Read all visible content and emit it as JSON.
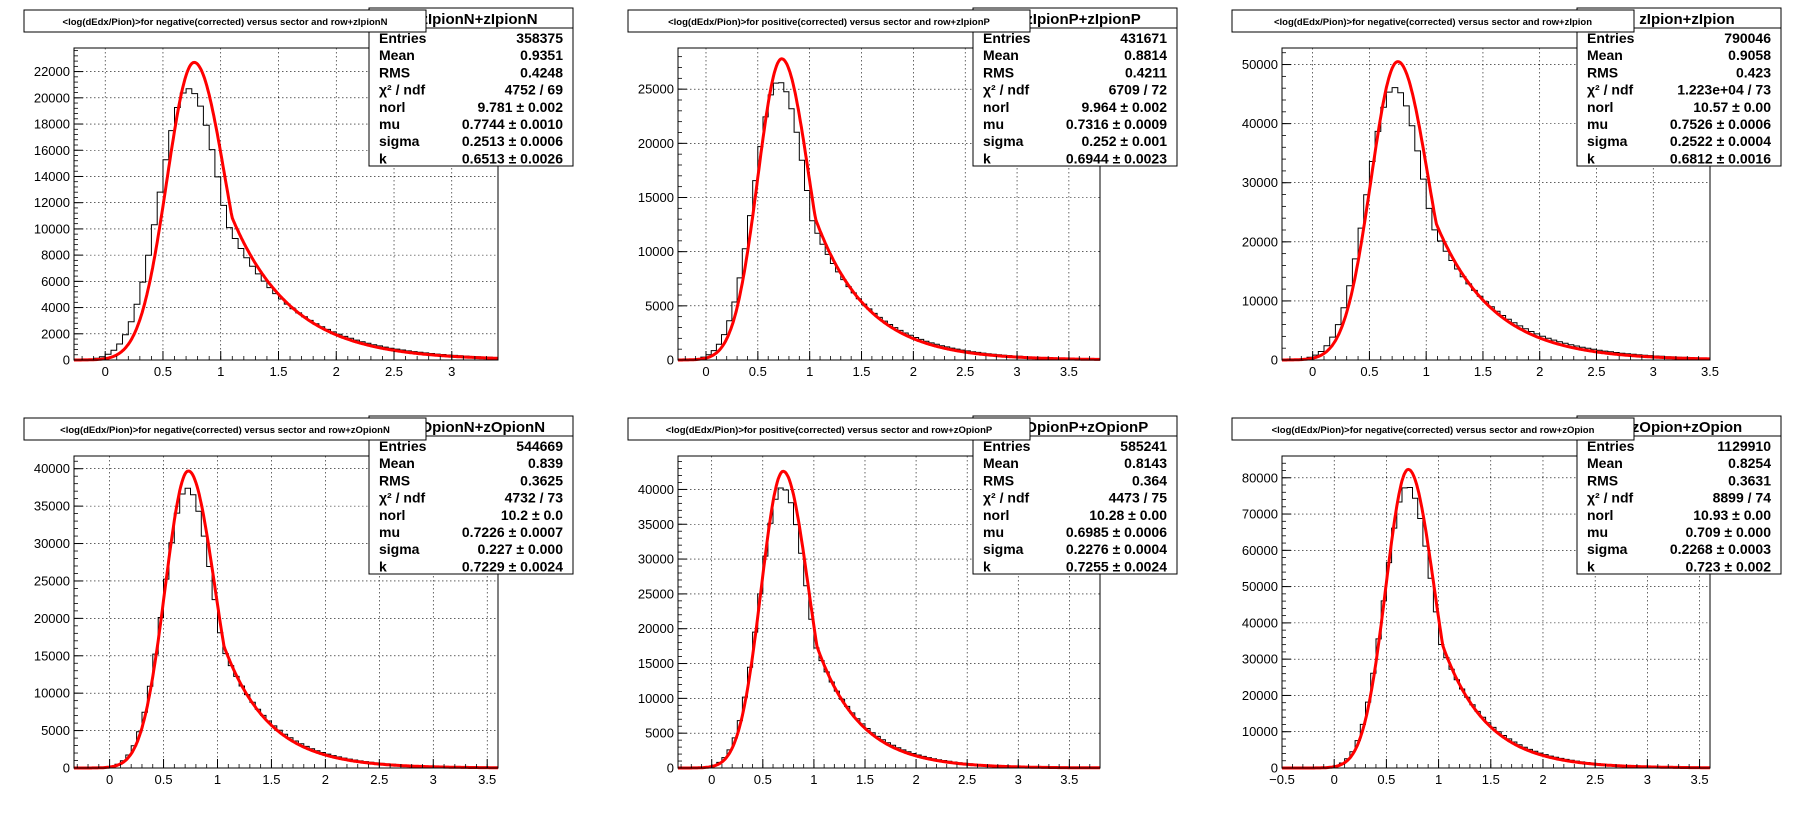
{
  "window": {
    "width": 1800,
    "height": 814
  },
  "colors": {
    "histogram": "#000000",
    "fit": "#ff0000",
    "grid": "#000000",
    "frame": "#000000",
    "background": "#ffffff"
  },
  "chart_data": [
    {
      "type": "histogram-with-fit",
      "title": "<log(dEdx/Pion)>for negative(corrected) versus sector and row+zIpionN",
      "stats_header": "zIpionN+zIpionN",
      "stats": [
        {
          "label": "Entries",
          "value": "358375"
        },
        {
          "label": "Mean",
          "value": "0.9351"
        },
        {
          "label": "RMS",
          "value": "0.4248"
        },
        {
          "label": "χ² / ndf",
          "value": "4752 / 69"
        },
        {
          "label": "norl",
          "value": "9.781 ± 0.002"
        },
        {
          "label": "mu",
          "value": "0.7744 ± 0.0010"
        },
        {
          "label": "sigma",
          "value": "0.2513 ± 0.0006"
        },
        {
          "label": "k",
          "value": "0.6513 ± 0.0026"
        }
      ],
      "xlim": [
        -0.27,
        3.4
      ],
      "ylim": [
        0,
        23800
      ],
      "xticks": [
        0,
        0.5,
        1,
        1.5,
        2,
        2.5,
        3
      ],
      "xtick_labels": [
        "0",
        "0.5",
        "1",
        "1.5",
        "2",
        "2.5",
        "3"
      ],
      "yticks": [
        0,
        2000,
        4000,
        6000,
        8000,
        10000,
        12000,
        14000,
        16000,
        18000,
        20000,
        22000
      ],
      "ytick_labels": [
        "0",
        "2000",
        "4000",
        "6000",
        "8000",
        "10000",
        "12000",
        "14000",
        "16000",
        "18000",
        "20000",
        "22000"
      ],
      "fit": {
        "peak": 0.77,
        "amplitude": 22700,
        "sigma_left": 0.235,
        "tail_decay": 0.52
      },
      "histogram": {
        "peak": 0.72,
        "amplitude": 20700,
        "sigma_left": 0.25,
        "tail_decay": 0.58,
        "bin_width": 0.05
      }
    },
    {
      "type": "histogram-with-fit",
      "title": "<log(dEdx/Pion)>for positive(corrected) versus sector and row+zIpionP",
      "stats_header": "zIpionP+zIpionP",
      "stats": [
        {
          "label": "Entries",
          "value": "431671"
        },
        {
          "label": "Mean",
          "value": "0.8814"
        },
        {
          "label": "RMS",
          "value": "0.4211"
        },
        {
          "label": "χ² / ndf",
          "value": "6709 / 72"
        },
        {
          "label": "norl",
          "value": "9.964 ± 0.002"
        },
        {
          "label": "mu",
          "value": "0.7316 ± 0.0009"
        },
        {
          "label": "sigma",
          "value": "0.252 ± 0.001"
        },
        {
          "label": "k",
          "value": "0.6944 ± 0.0023"
        }
      ],
      "xlim": [
        -0.27,
        3.8
      ],
      "ylim": [
        0,
        28800
      ],
      "xticks": [
        0,
        0.5,
        1,
        1.5,
        2,
        2.5,
        3,
        3.5
      ],
      "xtick_labels": [
        "0",
        "0.5",
        "1",
        "1.5",
        "2",
        "2.5",
        "3",
        "3.5"
      ],
      "yticks": [
        0,
        5000,
        10000,
        15000,
        20000,
        25000
      ],
      "ytick_labels": [
        "0",
        "5000",
        "10000",
        "15000",
        "20000",
        "25000"
      ],
      "fit": {
        "peak": 0.73,
        "amplitude": 27800,
        "sigma_left": 0.23,
        "tail_decay": 0.5
      },
      "histogram": {
        "peak": 0.7,
        "amplitude": 25700,
        "sigma_left": 0.24,
        "tail_decay": 0.55,
        "bin_width": 0.05
      }
    },
    {
      "type": "histogram-with-fit",
      "title": "<log(dEdx/Pion)>for negative(corrected) versus sector and row+zIpion",
      "stats_header": "zIpion+zIpion",
      "stats": [
        {
          "label": "Entries",
          "value": "790046"
        },
        {
          "label": "Mean",
          "value": "0.9058"
        },
        {
          "label": "RMS",
          "value": "0.423"
        },
        {
          "label": "χ² / ndf",
          "value": "1.223e+04 / 73"
        },
        {
          "label": "norl",
          "value": "10.57 ± 0.00"
        },
        {
          "label": "mu",
          "value": "0.7526 ± 0.0006"
        },
        {
          "label": "sigma",
          "value": "0.2522 ± 0.0004"
        },
        {
          "label": "k",
          "value": "0.6812 ± 0.0016"
        }
      ],
      "xlim": [
        -0.27,
        3.5
      ],
      "ylim": [
        0,
        52800
      ],
      "xticks": [
        0,
        0.5,
        1,
        1.5,
        2,
        2.5,
        3,
        3.5
      ],
      "xtick_labels": [
        "0",
        "0.5",
        "1",
        "1.5",
        "2",
        "2.5",
        "3",
        "3.5"
      ],
      "yticks": [
        0,
        10000,
        20000,
        30000,
        40000,
        50000
      ],
      "ytick_labels": [
        "0",
        "10000",
        "20000",
        "30000",
        "40000",
        "50000"
      ],
      "fit": {
        "peak": 0.75,
        "amplitude": 50500,
        "sigma_left": 0.235,
        "tail_decay": 0.5
      },
      "histogram": {
        "peak": 0.72,
        "amplitude": 46100,
        "sigma_left": 0.245,
        "tail_decay": 0.56,
        "bin_width": 0.05
      }
    },
    {
      "type": "histogram-with-fit",
      "title": "<log(dEdx/Pion)>for negative(corrected) versus sector and row+zOpionN",
      "stats_header": "zOpionN+zOpionN",
      "stats": [
        {
          "label": "Entries",
          "value": "544669"
        },
        {
          "label": "Mean",
          "value": "0.839"
        },
        {
          "label": "RMS",
          "value": "0.3625"
        },
        {
          "label": "χ² / ndf",
          "value": "4732 / 73"
        },
        {
          "label": "norl",
          "value": "10.2 ± 0.0"
        },
        {
          "label": "mu",
          "value": "0.7226 ± 0.0007"
        },
        {
          "label": "sigma",
          "value": "0.227 ± 0.000"
        },
        {
          "label": "k",
          "value": "0.7229 ± 0.0024"
        }
      ],
      "xlim": [
        -0.33,
        3.6
      ],
      "ylim": [
        0,
        41700
      ],
      "xticks": [
        0,
        0.5,
        1,
        1.5,
        2,
        2.5,
        3,
        3.5
      ],
      "xtick_labels": [
        "0",
        "0.5",
        "1",
        "1.5",
        "2",
        "2.5",
        "3",
        "3.5"
      ],
      "yticks": [
        0,
        5000,
        10000,
        15000,
        20000,
        25000,
        30000,
        35000,
        40000
      ],
      "ytick_labels": [
        "0",
        "5000",
        "10000",
        "15000",
        "20000",
        "25000",
        "30000",
        "35000",
        "40000"
      ],
      "fit": {
        "peak": 0.73,
        "amplitude": 39700,
        "sigma_left": 0.215,
        "tail_decay": 0.42
      },
      "histogram": {
        "peak": 0.72,
        "amplitude": 37400,
        "sigma_left": 0.22,
        "tail_decay": 0.45,
        "bin_width": 0.05
      }
    },
    {
      "type": "histogram-with-fit",
      "title": "<log(dEdx/Pion)>for positive(corrected) versus sector and row+zOpionP",
      "stats_header": "zOpionP+zOpionP",
      "stats": [
        {
          "label": "Entries",
          "value": "585241"
        },
        {
          "label": "Mean",
          "value": "0.8143"
        },
        {
          "label": "RMS",
          "value": "0.364"
        },
        {
          "label": "χ² / ndf",
          "value": "4473 / 75"
        },
        {
          "label": "norl",
          "value": "10.28 ± 0.00"
        },
        {
          "label": "mu",
          "value": "0.6985 ± 0.0006"
        },
        {
          "label": "sigma",
          "value": "0.2276 ± 0.0004"
        },
        {
          "label": "k",
          "value": "0.7255 ± 0.0024"
        }
      ],
      "xlim": [
        -0.33,
        3.8
      ],
      "ylim": [
        0,
        44800
      ],
      "xticks": [
        0,
        0.5,
        1,
        1.5,
        2,
        2.5,
        3,
        3.5
      ],
      "xtick_labels": [
        "0",
        "0.5",
        "1",
        "1.5",
        "2",
        "2.5",
        "3",
        "3.5"
      ],
      "yticks": [
        0,
        5000,
        10000,
        15000,
        20000,
        25000,
        30000,
        35000,
        40000
      ],
      "ytick_labels": [
        "0",
        "5000",
        "10000",
        "15000",
        "20000",
        "25000",
        "30000",
        "35000",
        "40000"
      ],
      "fit": {
        "peak": 0.7,
        "amplitude": 42600,
        "sigma_left": 0.215,
        "tail_decay": 0.42
      },
      "histogram": {
        "peak": 0.69,
        "amplitude": 40300,
        "sigma_left": 0.22,
        "tail_decay": 0.45,
        "bin_width": 0.05
      }
    },
    {
      "type": "histogram-with-fit",
      "title": "<log(dEdx/Pion)>for negative(corrected) versus sector and row+zOpion",
      "stats_header": "zOpion+zOpion",
      "stats": [
        {
          "label": "Entries",
          "value": "1129910"
        },
        {
          "label": "Mean",
          "value": "0.8254"
        },
        {
          "label": "RMS",
          "value": "0.3631"
        },
        {
          "label": "χ² / ndf",
          "value": "8899 / 74"
        },
        {
          "label": "norl",
          "value": "10.93 ± 0.00"
        },
        {
          "label": "mu",
          "value": "0.709 ± 0.000"
        },
        {
          "label": "sigma",
          "value": "0.2268 ± 0.0003"
        },
        {
          "label": "k",
          "value": "0.723 ± 0.002"
        }
      ],
      "xlim": [
        -0.5,
        3.6
      ],
      "ylim": [
        0,
        86000
      ],
      "xticks": [
        -0.5,
        0,
        0.5,
        1,
        1.5,
        2,
        2.5,
        3,
        3.5
      ],
      "xtick_labels": [
        "−0.5",
        "0",
        "0.5",
        "1",
        "1.5",
        "2",
        "2.5",
        "3",
        "3.5"
      ],
      "yticks": [
        0,
        10000,
        20000,
        30000,
        40000,
        50000,
        60000,
        70000,
        80000
      ],
      "ytick_labels": [
        "0",
        "10000",
        "20000",
        "30000",
        "40000",
        "50000",
        "60000",
        "70000",
        "80000"
      ],
      "fit": {
        "peak": 0.71,
        "amplitude": 82300,
        "sigma_left": 0.215,
        "tail_decay": 0.42
      },
      "histogram": {
        "peak": 0.7,
        "amplitude": 77700,
        "sigma_left": 0.22,
        "tail_decay": 0.45,
        "bin_width": 0.05
      }
    }
  ]
}
